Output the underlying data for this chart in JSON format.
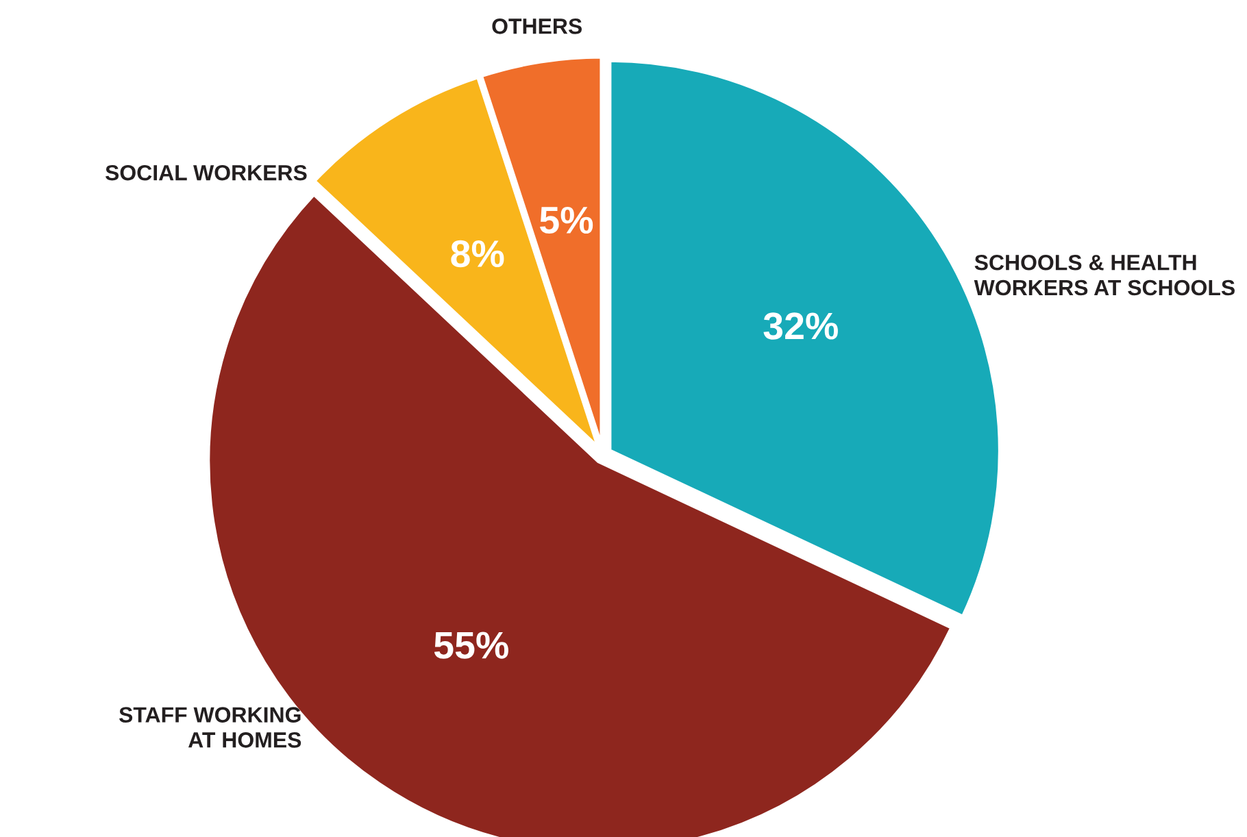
{
  "chart_data": {
    "type": "pie",
    "categories": [
      "SCHOOLS & HEALTH\nWORKERS AT SCHOOLS",
      "STAFF WORKING\nAT HOMES",
      "SOCIAL WORKERS",
      "OTHERS"
    ],
    "values": [
      32,
      55,
      8,
      5
    ],
    "value_labels": [
      "32%",
      "55%",
      "8%",
      "5%"
    ],
    "colors": [
      "#17aab8",
      "#8e261e",
      "#f9b51b",
      "#f06e2a"
    ],
    "legend": false
  }
}
